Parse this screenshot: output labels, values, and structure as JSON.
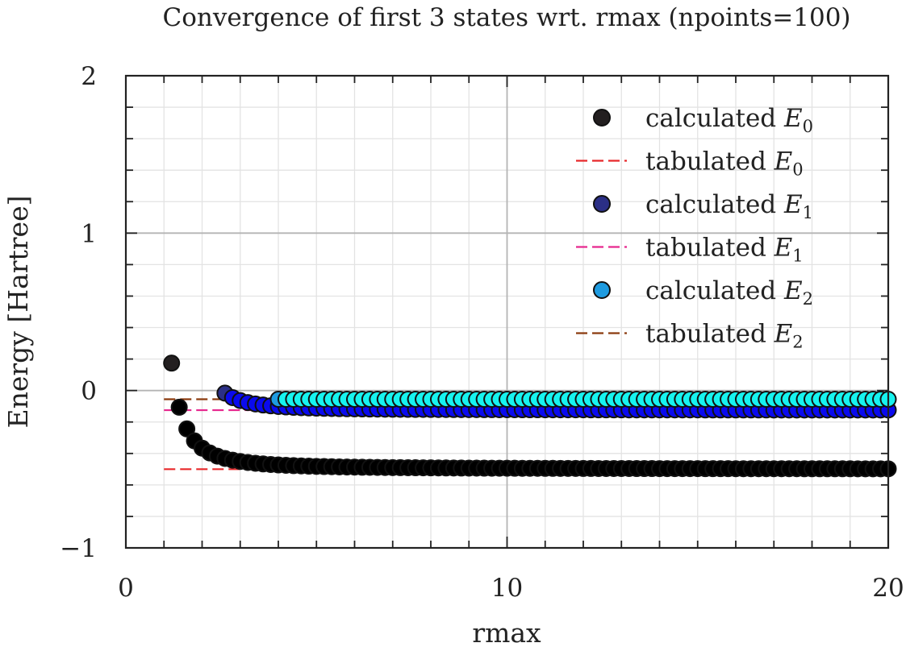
{
  "chart_data": {
    "type": "scatter",
    "title": "Convergence of first 3 states wrt. rmax (npoints=100)",
    "xlabel": "rmax",
    "ylabel": "Energy [Hartree]",
    "xlim": [
      0,
      20
    ],
    "ylim": [
      -1,
      2
    ],
    "xticks": [
      0,
      10,
      20
    ],
    "yticks": [
      -1,
      0,
      1,
      2
    ],
    "xtick_labels": [
      "0",
      "10",
      "20"
    ],
    "ytick_labels": [
      "−1",
      "0",
      "1",
      "2"
    ],
    "grid": true,
    "legend_position": "top-right",
    "legend": [
      {
        "kind": "marker",
        "label": "calculated E",
        "sub": "0",
        "color": "#231f20"
      },
      {
        "kind": "line",
        "label": "tabulated E",
        "sub": "0",
        "color": "#e8282a"
      },
      {
        "kind": "marker",
        "label": "calculated E",
        "sub": "1",
        "color": "#2b2f86"
      },
      {
        "kind": "line",
        "label": "tabulated E",
        "sub": "1",
        "color": "#e6278e"
      },
      {
        "kind": "marker",
        "label": "calculated E",
        "sub": "2",
        "color": "#1e9be0"
      },
      {
        "kind": "line",
        "label": "tabulated E",
        "sub": "2",
        "color": "#8b3a0e"
      }
    ],
    "x_range": [
      1,
      20
    ],
    "x_step": 0.2,
    "series": [
      {
        "name": "calculated E0",
        "kind": "scatter",
        "first_color": "#231f20",
        "color": "#000000",
        "x_start": 1.2,
        "asymptote": -0.5,
        "amplitude": 2.69,
        "decay": 4.18,
        "offset": 0.85
      },
      {
        "name": "tabulated E0",
        "kind": "hline",
        "color": "#e8282a",
        "y": -0.5,
        "x_from": 1.0,
        "x_to": 20.0
      },
      {
        "name": "calculated E1",
        "kind": "scatter",
        "first_color": "#2b2f86",
        "color": "#0a0aee",
        "x_start": 2.6,
        "asymptote": -0.125,
        "amplitude": 10.25,
        "decay": 6.49,
        "offset": 1.27
      },
      {
        "name": "tabulated E1",
        "kind": "hline",
        "color": "#e6278e",
        "y": -0.125,
        "x_from": 1.0,
        "x_to": 20.0
      },
      {
        "name": "calculated E2",
        "kind": "scatter",
        "first_color": "#1e9be0",
        "color": "#16f3ef",
        "x_start": 4.0,
        "asymptote": -0.0556,
        "amplitude": 30.0,
        "decay": 13.7,
        "offset": 1.3
      },
      {
        "name": "tabulated E2",
        "kind": "hline",
        "color": "#8b3a0e",
        "y": -0.0556,
        "x_from": 1.0,
        "x_to": 20.0
      }
    ]
  }
}
